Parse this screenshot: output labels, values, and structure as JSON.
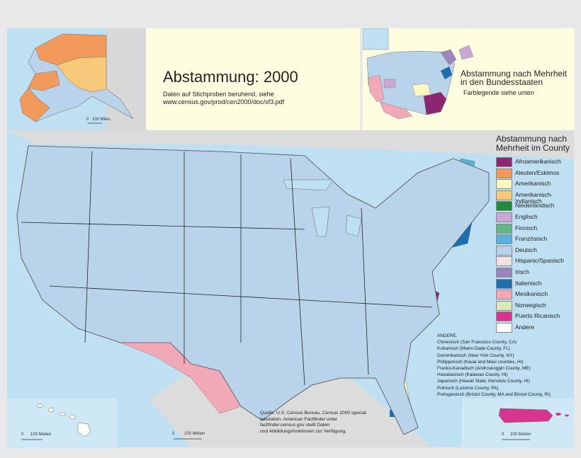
{
  "title": "Abstammung: 2000",
  "subtitle_line1": "Daten auf Stichproben beruhend, siehe",
  "subtitle_line2": "www.census.gov/prod/cen2000/doc/sf3.pdf",
  "inset_title": "Abstammung nach Mehrheit in den Bundesstaaten",
  "inset_subtitle": "Farblegende siehe unten",
  "alaska_scale": {
    "zero": "0",
    "label": "100 Miles"
  },
  "hawaii_scale": {
    "zero": "0",
    "label": "100 Meilen"
  },
  "main_scale": {
    "zero": "0",
    "label": "100 Meilen"
  },
  "pr_scale": {
    "zero": "0",
    "label": "100 Meilen"
  },
  "legend": {
    "heading": "Abstammung nach Mehrheit im County",
    "items": [
      {
        "label": "Afroamerikanisch",
        "color": "#8b2772"
      },
      {
        "label": "Aleuten/Eskimos",
        "color": "#f29a5b"
      },
      {
        "label": "Amerikanisch",
        "color": "#fbf7c2"
      },
      {
        "label": "Amerikanisch-Indianisch",
        "color": "#f8c97a"
      },
      {
        "label": "Niederländisch",
        "color": "#1e8a3a"
      },
      {
        "label": "Englisch",
        "color": "#c9a8d6"
      },
      {
        "label": "Finnisch",
        "color": "#5fb784"
      },
      {
        "label": "Französisch",
        "color": "#59b2de"
      },
      {
        "label": "Deutsch",
        "color": "#b9d3ea"
      },
      {
        "label": "Hispanic/Spanisch",
        "color": "#f3e0df"
      },
      {
        "label": "Irisch",
        "color": "#9a86bd"
      },
      {
        "label": "Italienisch",
        "color": "#1a6fae"
      },
      {
        "label": "Mexikanisch",
        "color": "#f2a9b7"
      },
      {
        "label": "Norwegisch",
        "color": "#dbe8b6"
      },
      {
        "label": "Puerto Ricanisch",
        "color": "#d8358f"
      },
      {
        "label": "Andere",
        "color": "#ffffff"
      }
    ]
  },
  "others": {
    "heading": "ANDERE:",
    "items": [
      "Chinesisch (San Francisco County, CA)",
      "Kubanisch (Miami-Dade County, FL)",
      "Dominikanisch (New York County, NY)",
      "Philippinisch (Kauai and Maui counties, HI)",
      "Franko-Kanadisch (Androskoggin County, ME)",
      "Hawaiianisch (Kalawao County, HI)",
      "Japanisch (Hawaii State; Honolulu County, HI)",
      "Polnisch (Luzerne County, PA)",
      "Portugiesisch (Bristol County, MA and Bristol County, RI)"
    ]
  },
  "source": {
    "line1": "Quelle: U.S. Census Bureau, Census 2000 special",
    "line2": "tabulation. American Factfinder unter",
    "line3": "factfinder.census.gov  stellt Daten",
    "line4": "und Abbildungsfunktionen zur Verfügung."
  }
}
